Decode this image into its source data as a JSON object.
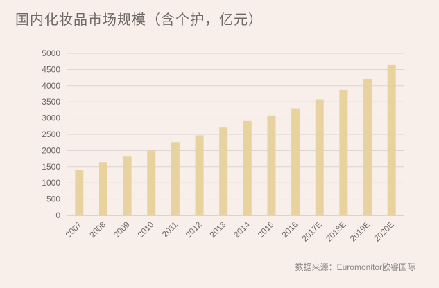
{
  "chart_data": {
    "type": "bar",
    "title": "国内化妆品市场规模（含个护，亿元）",
    "categories": [
      "2007",
      "2008",
      "2009",
      "2010",
      "2011",
      "2012",
      "2013",
      "2014",
      "2015",
      "2016",
      "2017E",
      "2018E",
      "2019E",
      "2020E"
    ],
    "values": [
      1400,
      1640,
      1810,
      2000,
      2260,
      2470,
      2710,
      2910,
      3080,
      3300,
      3580,
      3870,
      4210,
      4640
    ],
    "ylim": [
      0,
      5000
    ],
    "yticks": [
      "0",
      "500",
      "1000",
      "1500",
      "2000",
      "2500",
      "3000",
      "3500",
      "4000",
      "4500",
      "5000"
    ],
    "bar_color": "#e8d39e",
    "grid": true,
    "source": "数据来源：Euromonitor欧睿国际"
  }
}
